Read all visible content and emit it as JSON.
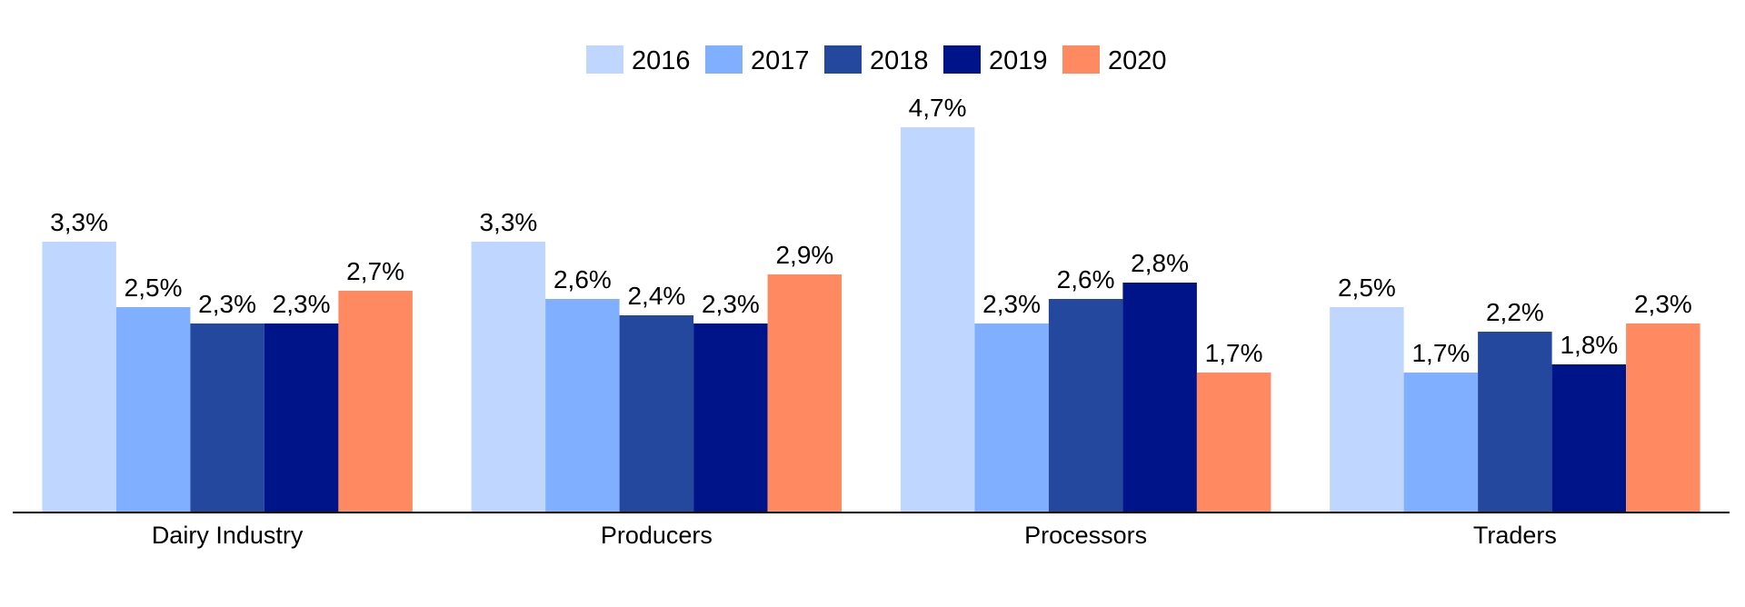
{
  "chart_data": {
    "type": "bar",
    "title": "",
    "xlabel": "",
    "ylabel": "",
    "ylim": [
      0,
      6.25
    ],
    "grid": false,
    "legend_position": "top-center",
    "categories": [
      "Dairy Industry",
      "Producers",
      "Processors",
      "Traders"
    ],
    "series": [
      {
        "name": "2016",
        "color": "#BFD7FF",
        "values": [
          3.3,
          3.3,
          4.7,
          2.5
        ],
        "labels": [
          "3,3%",
          "3,3%",
          "4,7%",
          "2,5%"
        ]
      },
      {
        "name": "2017",
        "color": "#80AFFF",
        "values": [
          2.5,
          2.6,
          2.3,
          1.7
        ],
        "labels": [
          "2,5%",
          "2,6%",
          "2,3%",
          "1,7%"
        ]
      },
      {
        "name": "2018",
        "color": "#23489E",
        "values": [
          2.3,
          2.4,
          2.6,
          2.2
        ],
        "labels": [
          "2,3%",
          "2,4%",
          "2,6%",
          "2,2%"
        ]
      },
      {
        "name": "2019",
        "color": "#00148A",
        "values": [
          2.3,
          2.3,
          2.8,
          1.8
        ],
        "labels": [
          "2,3%",
          "2,3%",
          "2,8%",
          "1,8%"
        ]
      },
      {
        "name": "2020",
        "color": "#FF8A62",
        "values": [
          2.7,
          2.9,
          1.7,
          2.3
        ],
        "labels": [
          "2,7%",
          "2,9%",
          "1,7%",
          "2,3%"
        ]
      }
    ]
  }
}
